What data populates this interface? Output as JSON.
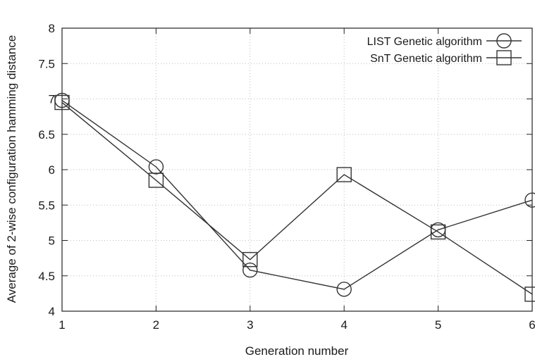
{
  "chart_data": {
    "type": "line",
    "title": "",
    "xlabel": "Generation number",
    "ylabel": "Average of 2-wise configuration hamming distance",
    "xlim": [
      1,
      6
    ],
    "ylim": [
      4,
      8
    ],
    "x_ticks": [
      "1",
      "2",
      "3",
      "4",
      "5",
      "6"
    ],
    "y_ticks": [
      "4",
      "4.5",
      "5",
      "5.5",
      "6",
      "6.5",
      "7",
      "7.5",
      "8"
    ],
    "grid": true,
    "legend_position": "top-right",
    "x": [
      1,
      2,
      3,
      4,
      5,
      6
    ],
    "series": [
      {
        "name": "LIST Genetic algorithm",
        "marker": "circle",
        "values": [
          6.98,
          6.04,
          4.58,
          4.31,
          5.15,
          5.57
        ]
      },
      {
        "name": "SnT Genetic algorithm",
        "marker": "square",
        "values": [
          6.95,
          5.85,
          4.73,
          5.93,
          5.12,
          4.24
        ]
      }
    ],
    "colors": {
      "line": "#333333",
      "grid": "#bdbdbd",
      "axis": "#222222"
    }
  }
}
